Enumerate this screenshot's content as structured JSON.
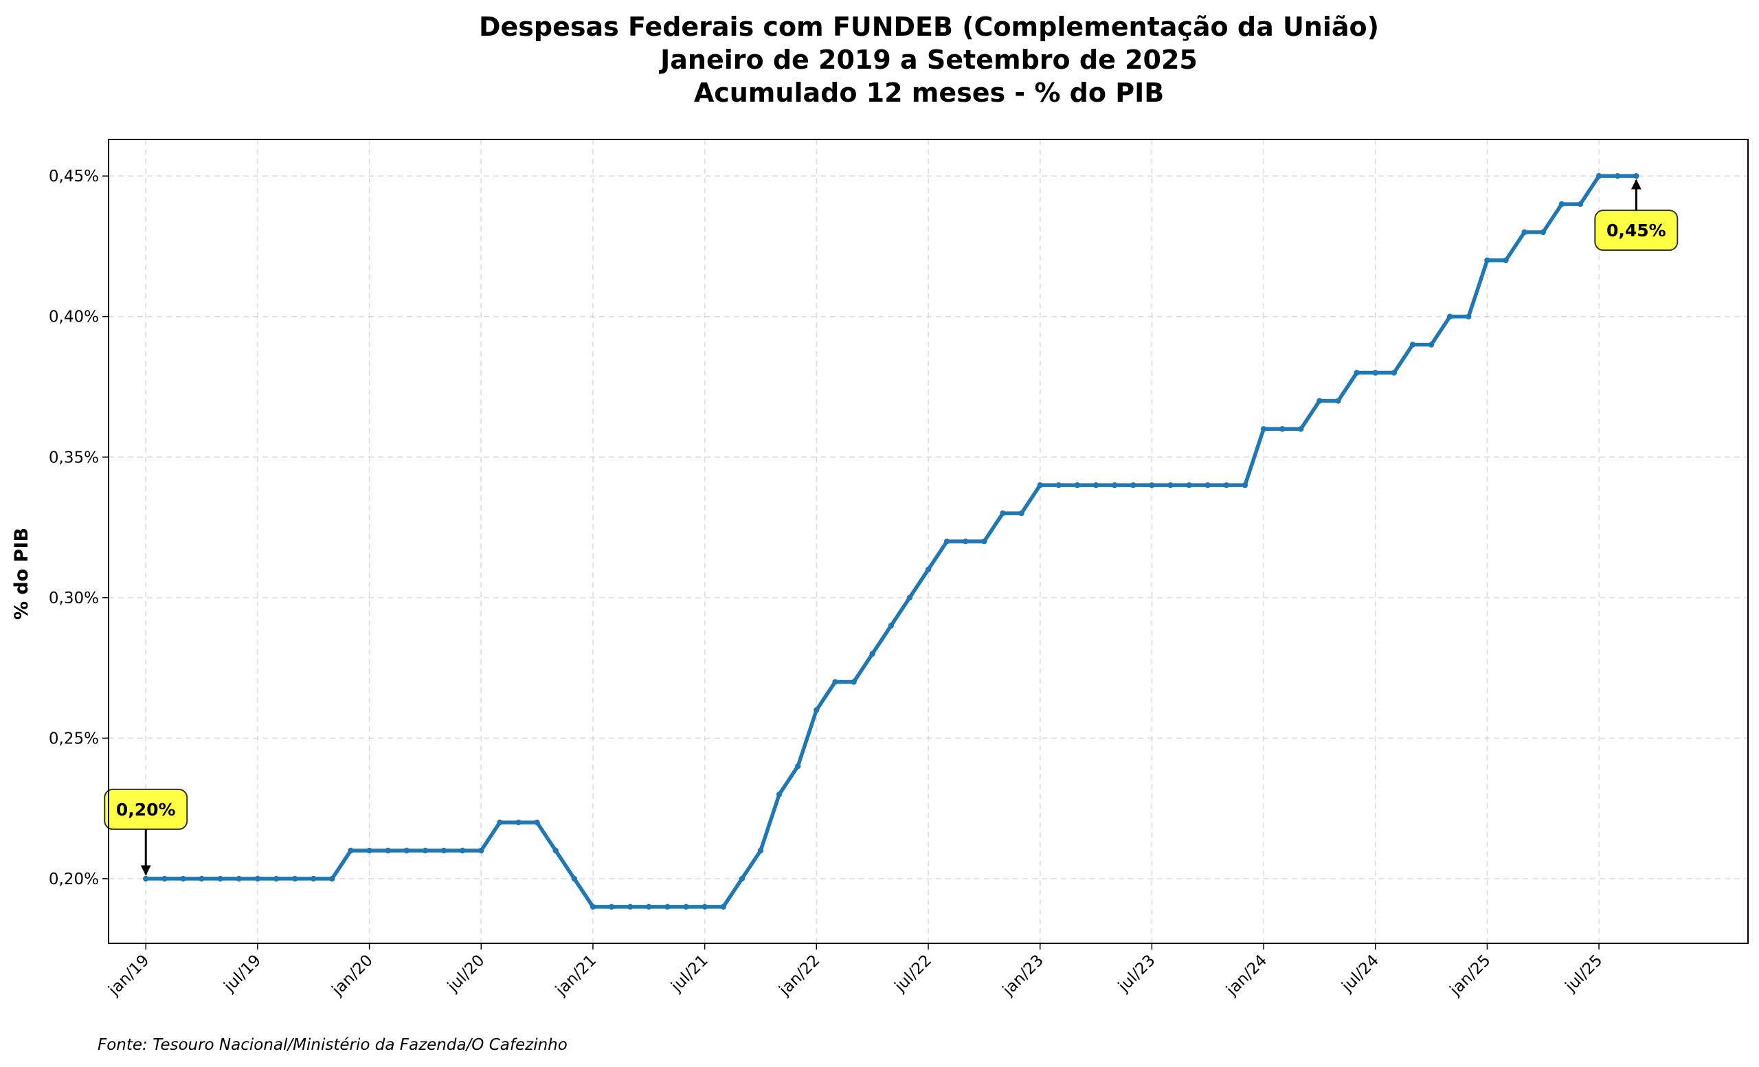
{
  "chart_data": {
    "type": "line",
    "title_lines": [
      "Despesas Federais com FUNDEB (Complementação da União)",
      "Janeiro de 2019 a Setembro de 2025",
      "Acumulado 12 meses - % do PIB"
    ],
    "xlabel": "",
    "ylabel": "% do PIB",
    "source": "Fonte: Tesouro Nacional/Ministério da Fazenda/O Cafezinho",
    "ylim": [
      0.177,
      0.463
    ],
    "yticks": [
      0.2,
      0.25,
      0.3,
      0.35,
      0.4,
      0.45
    ],
    "ytick_labels": [
      "0,20%",
      "0,25%",
      "0,30%",
      "0,35%",
      "0,40%",
      "0,45%"
    ],
    "x_start": "2019-01",
    "x_end": "2025-09",
    "xlim_months": [
      "2018-11",
      "2026-03"
    ],
    "xticks": [
      "2019-01",
      "2019-07",
      "2020-01",
      "2020-07",
      "2021-01",
      "2021-07",
      "2022-01",
      "2022-07",
      "2023-01",
      "2023-07",
      "2024-01",
      "2024-07",
      "2025-01",
      "2025-07"
    ],
    "xtick_labels": [
      "jan/19",
      "jul/19",
      "jan/20",
      "jul/20",
      "jan/21",
      "jul/21",
      "jan/22",
      "jul/22",
      "jan/23",
      "jul/23",
      "jan/24",
      "jul/24",
      "jan/25",
      "jul/25"
    ],
    "grid": true,
    "line_color": "#1f77b4",
    "annotation_color": "#ffff44",
    "series": [
      {
        "values": [
          0.2,
          0.2,
          0.2,
          0.2,
          0.2,
          0.2,
          0.2,
          0.2,
          0.2,
          0.2,
          0.2,
          0.21,
          0.21,
          0.21,
          0.21,
          0.21,
          0.21,
          0.21,
          0.21,
          0.22,
          0.22,
          0.22,
          0.21,
          0.2,
          0.19,
          0.19,
          0.19,
          0.19,
          0.19,
          0.19,
          0.19,
          0.19,
          0.2,
          0.21,
          0.23,
          0.24,
          0.26,
          0.27,
          0.27,
          0.28,
          0.29,
          0.3,
          0.31,
          0.32,
          0.32,
          0.32,
          0.33,
          0.33,
          0.34,
          0.34,
          0.34,
          0.34,
          0.34,
          0.34,
          0.34,
          0.34,
          0.34,
          0.34,
          0.34,
          0.34,
          0.36,
          0.36,
          0.36,
          0.37,
          0.37,
          0.38,
          0.38,
          0.38,
          0.39,
          0.39,
          0.4,
          0.4,
          0.42,
          0.42,
          0.43,
          0.43,
          0.44,
          0.44,
          0.45,
          0.45,
          0.45
        ]
      }
    ],
    "annotations": [
      {
        "point": "first",
        "text": "0,20%"
      },
      {
        "point": "last",
        "text": "0,45%"
      }
    ]
  }
}
